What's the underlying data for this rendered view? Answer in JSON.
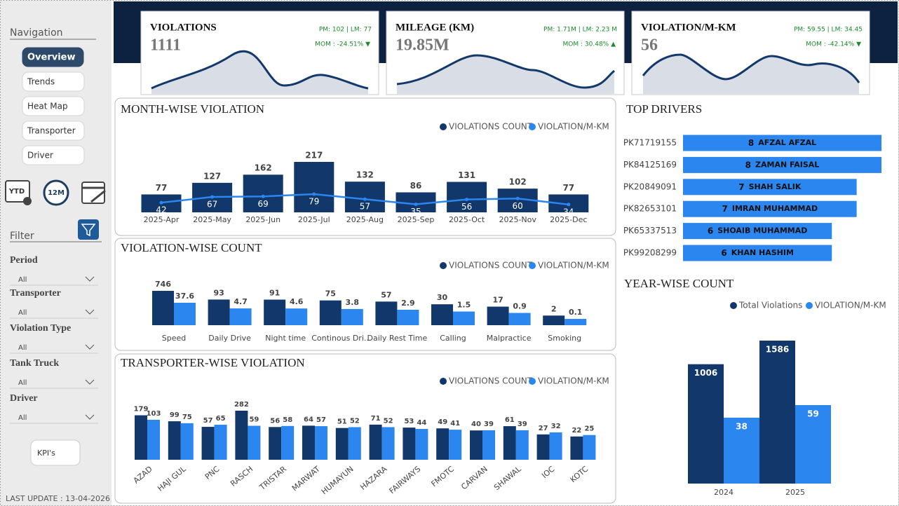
{
  "navigation": {
    "title": "Navigation",
    "items": [
      "Overview",
      "Trends",
      "Heat Map",
      "Transporter",
      "Driver"
    ]
  },
  "period_buttons": [
    "YTD",
    "12M"
  ],
  "filter": {
    "title": "Filter",
    "fields": [
      {
        "label": "Period",
        "value": "All"
      },
      {
        "label": "Transporter",
        "value": "All"
      },
      {
        "label": "Violation Type",
        "value": "All"
      },
      {
        "label": "Tank Truck",
        "value": "All"
      },
      {
        "label": "Driver",
        "value": "All"
      }
    ]
  },
  "kpi_button": "KPI's",
  "last_update": "LAST UPDATE : 13-04-2026",
  "kpis": [
    {
      "title": "VIOLATIONS",
      "value": 1111,
      "comparison": "PM: 102 | LM: 77",
      "mom": "MOM : -24.51% ▼"
    },
    {
      "title": "MILEAGE (KM)",
      "value": "19.85M",
      "comparison": "PM: 1.71M | LM: 2.23 M",
      "mom": "MOM : 30.48% ▲"
    },
    {
      "title": "VIOLATION/M-KM",
      "value": 56,
      "comparison": "PM: 59.55 | LM: 34.45",
      "mom": "MOM : -42.14% ▼"
    }
  ],
  "chart_data": [
    {
      "type": "bar",
      "title": "MONTH-WISE VIOLATION",
      "categories": [
        "2025-Apr",
        "2025-May",
        "2025-Jun",
        "2025-Jul",
        "2025-Aug",
        "2025-Sep",
        "2025-Oct",
        "2025-Nov",
        "2025-Dec"
      ],
      "series": [
        {
          "name": "VIOLATIONS COUNT",
          "color": "#12376a",
          "type": "bar",
          "values": [
            77,
            127,
            162,
            217,
            132,
            86,
            131,
            102,
            77
          ]
        },
        {
          "name": "VIOLATION/M-KM",
          "color": "#2b86f0",
          "type": "line",
          "axis": "y2",
          "values": [
            42,
            67,
            69,
            79,
            57,
            35,
            56,
            60,
            34
          ]
        }
      ]
    },
    {
      "type": "bar",
      "title": "VIOLATION-WISE COUNT",
      "log_scale": true,
      "categories": [
        "Speed",
        "Daily Drive",
        "Night time",
        "Continous Dri...",
        "Daily Rest Time",
        "Calling",
        "Malpractice",
        "Smoking"
      ],
      "series": [
        {
          "name": "VIOLATIONS COUNT",
          "color": "#12376a",
          "type": "bar",
          "values": [
            746,
            93,
            91,
            75,
            57,
            30,
            17,
            2
          ]
        },
        {
          "name": "VIOLATION/M-KM",
          "color": "#2b86f0",
          "type": "bar",
          "axis": "y2",
          "values": [
            37.6,
            4.7,
            4.6,
            3.8,
            2.9,
            1.5,
            0.9,
            0.1
          ]
        }
      ]
    },
    {
      "type": "bar",
      "title": "TRANSPORTER-WISE VIOLATION",
      "log_scale": true,
      "categories": [
        "AZAD",
        "HAJI GUL",
        "PNC",
        "RASCH",
        "TRISTAR",
        "MARWAT",
        "HUMAYUN",
        "HAZARA",
        "FAIRWAYS",
        "FMOTC",
        "CARVAN",
        "SHAWAL",
        "IOC",
        "KOTC"
      ],
      "series": [
        {
          "name": "VIOLATIONS COUNT",
          "color": "#12376a",
          "type": "bar",
          "values": [
            179,
            99,
            57,
            282,
            56,
            64,
            51,
            71,
            53,
            49,
            40,
            61,
            27,
            22
          ]
        },
        {
          "name": "VIOLATION/M-KM",
          "color": "#2b86f0",
          "type": "bar",
          "axis": "y2",
          "values": [
            103,
            75,
            65,
            59,
            58,
            57,
            52,
            52,
            44,
            41,
            39,
            39,
            32,
            25
          ]
        }
      ]
    },
    {
      "type": "hbar",
      "title": "TOP DRIVERS",
      "color": "#2b86f0",
      "categories": [
        "PK71719155",
        "PK84125169",
        "PK20849091",
        "PK82653101",
        "PK65337513",
        "PK99208299"
      ],
      "labels": [
        "AFZAL AFZAL",
        "ZAMAN FAISAL",
        "SHAH SALIK",
        "IMRAN MUHAMMAD",
        "SHOAIB MUHAMMAD",
        "KHAN HASHIM"
      ],
      "values": [
        8,
        8,
        7,
        7,
        6,
        6
      ]
    },
    {
      "type": "bar",
      "title": "YEAR-WISE COUNT",
      "log_scale": true,
      "categories": [
        "2024",
        "2025"
      ],
      "series": [
        {
          "name": "Total Violations",
          "color": "#12376a",
          "type": "bar",
          "values": [
            1006,
            1586
          ]
        },
        {
          "name": "VIOLATION/M-KM",
          "color": "#2b86f0",
          "type": "bar",
          "axis": "y2",
          "values": [
            38,
            59
          ]
        }
      ]
    }
  ]
}
